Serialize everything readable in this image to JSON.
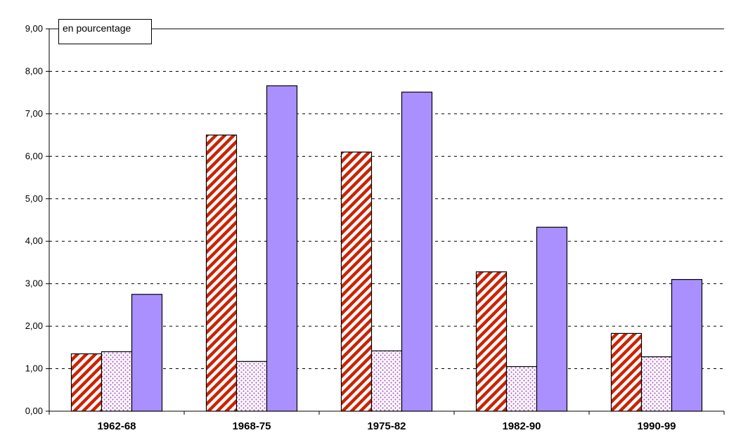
{
  "chart_data": {
    "type": "bar",
    "unit_label": "en pourcentage",
    "categories": [
      "1962-68",
      "1968-75",
      "1975-82",
      "1982-90",
      "1990-99"
    ],
    "series": [
      {
        "pattern": "diagonal-stripes",
        "color": "#cc2200",
        "values": [
          1.35,
          6.5,
          6.1,
          3.28,
          1.83
        ]
      },
      {
        "pattern": "dots",
        "color": "#b05cc8",
        "values": [
          1.4,
          1.17,
          1.42,
          1.05,
          1.28
        ]
      },
      {
        "pattern": "solid",
        "color": "#aa90ff",
        "values": [
          2.75,
          7.66,
          7.51,
          4.33,
          3.1
        ]
      }
    ],
    "ylim": [
      0,
      9
    ],
    "ytick_step": 1,
    "ytick_labels": [
      "0,00",
      "1,00",
      "2,00",
      "3,00",
      "4,00",
      "5,00",
      "6,00",
      "7,00",
      "8,00",
      "9,00"
    ],
    "grid": "dashed horizontal"
  }
}
